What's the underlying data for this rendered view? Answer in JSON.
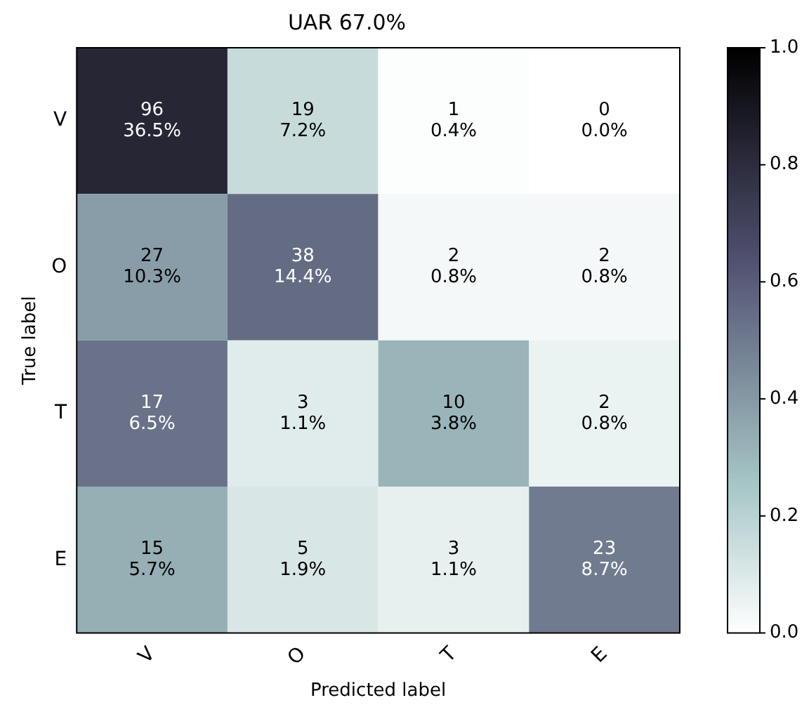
{
  "chart_data": {
    "type": "heatmap",
    "title": "UAR 67.0%",
    "xlabel": "Predicted label",
    "ylabel": "True label",
    "categories": [
      "V",
      "O",
      "T",
      "E"
    ],
    "y_categories": [
      "V",
      "O",
      "T",
      "E"
    ],
    "cells": [
      [
        0.83,
        0.16,
        0.01,
        0
      ],
      [
        0.39,
        0.55,
        0.03,
        0.03
      ],
      [
        0.53,
        0.09,
        0.31,
        0.06
      ],
      [
        0.33,
        0.11,
        0.07,
        0.5
      ]
    ],
    "cell_labels": [
      [
        "96\n36.5%",
        "19\n7.2%",
        "1\n0.4%",
        "0\n0.0%"
      ],
      [
        "27\n10.3%",
        "38\n14.4%",
        "2\n0.8%",
        "2\n0.8%"
      ],
      [
        "17\n6.5%",
        "3\n1.1%",
        "10\n3.8%",
        "2\n0.8%"
      ],
      [
        "15\n5.7%",
        "5\n1.9%",
        "3\n1.1%",
        "23\n8.7%"
      ]
    ],
    "clim": [
      0,
      1
    ],
    "cticks": [
      {
        "value": 0,
        "label": "0.0"
      },
      {
        "value": 0.2,
        "label": "0.2"
      },
      {
        "value": 0.4,
        "label": "0.4"
      },
      {
        "value": 0.6,
        "label": "0.6"
      },
      {
        "value": 0.8,
        "label": "0.8"
      },
      {
        "value": 1,
        "label": "1.0"
      }
    ]
  }
}
